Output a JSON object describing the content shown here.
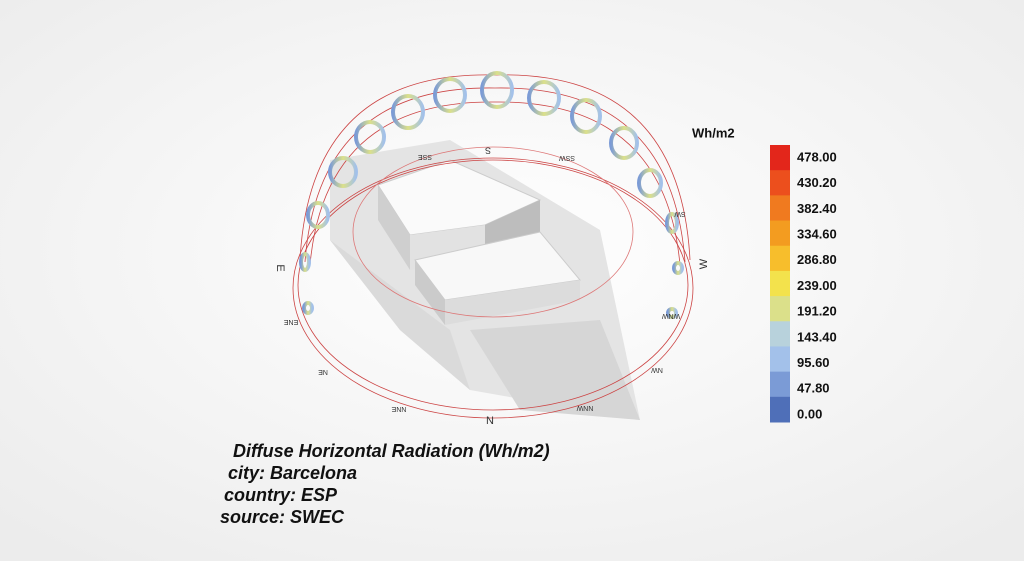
{
  "legend": {
    "title": "Wh/m2",
    "labels": [
      "478.00",
      "430.20",
      "382.40",
      "334.60",
      "286.80",
      "239.00",
      "191.20",
      "143.40",
      "95.60",
      "47.80",
      "0.00"
    ],
    "colors": [
      "#e3261b",
      "#ec4f1d",
      "#f07a1f",
      "#f39c20",
      "#f7be2c",
      "#f3e24c",
      "#dbe08a",
      "#b8d2dc",
      "#a3c1ea",
      "#7b9bd6",
      "#4f6fb8"
    ]
  },
  "compass": [
    "S",
    "SSE",
    "SSW",
    "E",
    "ENE",
    "NE",
    "NNE",
    "N",
    "NNW",
    "NW",
    "WNW",
    "W",
    "SW"
  ],
  "caption": [
    "Diffuse Horizontal Radiation (Wh/m2)",
    "city: Barcelona",
    "country: ESP",
    "source: SWEC"
  ]
}
